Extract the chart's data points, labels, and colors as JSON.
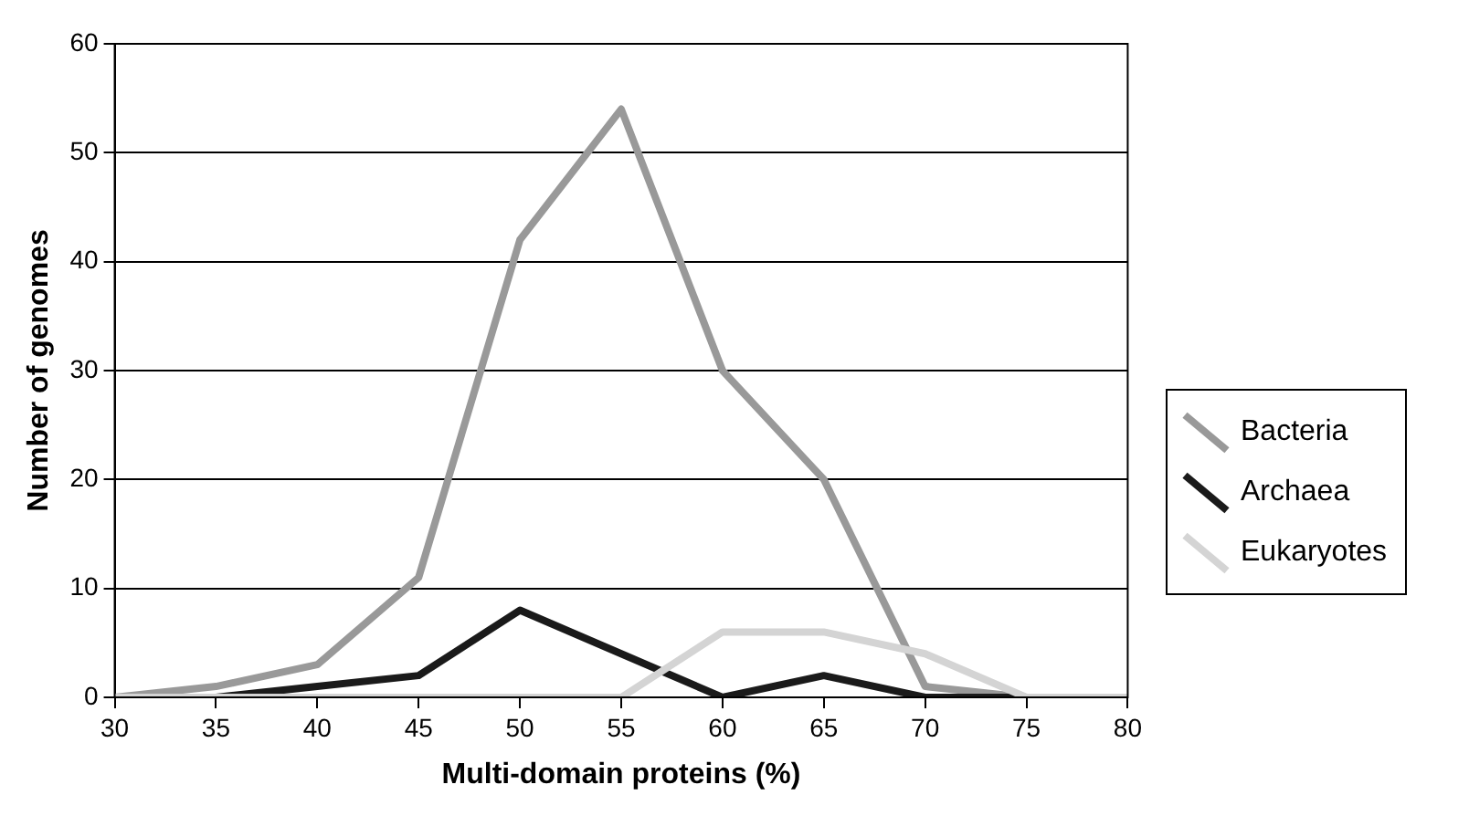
{
  "chart_data": {
    "type": "line",
    "xlabel": "Multi-domain proteins (%)",
    "ylabel": "Number of genomes",
    "x": [
      30,
      35,
      40,
      45,
      50,
      55,
      60,
      65,
      70,
      75,
      80
    ],
    "series": [
      {
        "name": "Bacteria",
        "color": "#999999",
        "values": [
          0,
          1,
          3,
          11,
          42,
          54,
          30,
          20,
          1,
          0,
          0
        ]
      },
      {
        "name": "Archaea",
        "color": "#1a1a1a",
        "values": [
          0,
          0,
          1,
          2,
          8,
          4,
          0,
          2,
          0,
          0,
          0
        ]
      },
      {
        "name": "Eukaryotes",
        "color": "#d4d4d4",
        "values": [
          0,
          0,
          0,
          0,
          0,
          0,
          6,
          6,
          4,
          0,
          0
        ]
      }
    ],
    "xlim": [
      30,
      80
    ],
    "xticks": [
      30,
      35,
      40,
      45,
      50,
      55,
      60,
      65,
      70,
      75,
      80
    ],
    "ylim": [
      0,
      60
    ],
    "yticks": [
      0,
      10,
      20,
      30,
      40,
      50,
      60
    ],
    "grid": "y",
    "legend": "right",
    "marker": "none",
    "line_style": "solid"
  }
}
